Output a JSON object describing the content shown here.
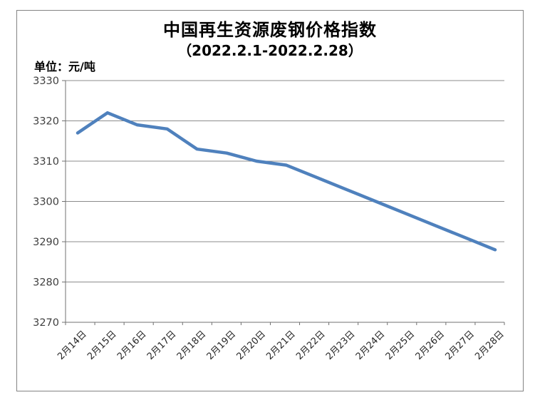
{
  "chart": {
    "title": "中国再生资源废钢价格指数",
    "subtitle": "（2022.2.1-2022.2.28）",
    "unit_label": "单位：元/吨"
  },
  "colors": {
    "line": "#4F81BD",
    "grid": "#8C8C8C",
    "axis": "#707070",
    "frame": "#838383",
    "y_tick_text": "#404040",
    "x_tick_text": "#262626",
    "title_text": "#000000"
  },
  "chart_data": {
    "type": "line",
    "title": "中国再生资源废钢价格指数",
    "subtitle": "（2022.2.1-2022.2.28）",
    "unit": "元/吨",
    "categories": [
      "2月14日",
      "2月15日",
      "2月16日",
      "2月17日",
      "2月18日",
      "2月19日",
      "2月20日",
      "2月21日",
      "2月22日",
      "2月23日",
      "2月24日",
      "2月25日",
      "2月26日",
      "2月27日",
      "2月28日"
    ],
    "values": [
      3317,
      3322,
      3319,
      3318,
      3313,
      3312,
      3310,
      3309,
      3306,
      3303,
      3300,
      3297,
      3294,
      3291,
      3288
    ],
    "ylabel": "元/吨",
    "xlabel": "",
    "ylim": [
      3270,
      3330
    ],
    "yticks": [
      3330,
      3320,
      3310,
      3300,
      3290,
      3280,
      3270
    ],
    "grid": true,
    "legend": false,
    "x_label_rotation_deg": 45
  }
}
